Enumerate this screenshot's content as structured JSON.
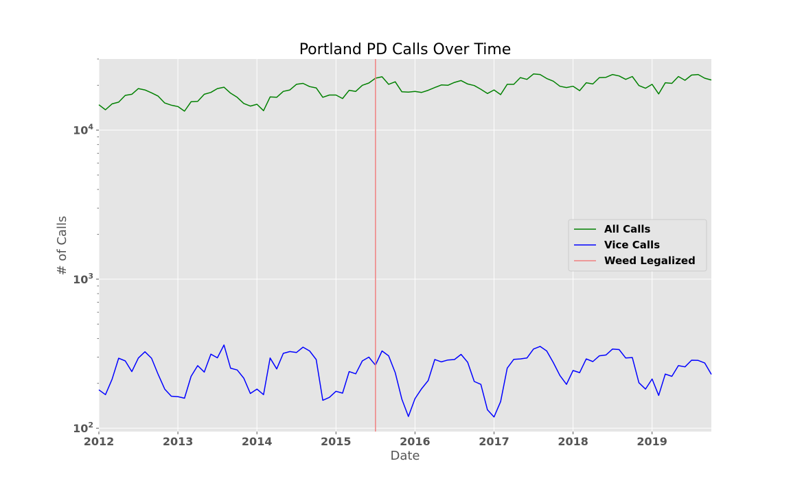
{
  "chart_data": {
    "type": "line",
    "title": "Portland PD Calls Over Time",
    "xlabel": "Date",
    "ylabel": "# of Calls",
    "yscale": "log",
    "ylim": [
      95,
      30000
    ],
    "xlim": [
      "2012-01",
      "2019-10"
    ],
    "grid": true,
    "background": "#e5e5e5",
    "legend": {
      "position": "center-right"
    },
    "x_ticks": [
      "2012",
      "2013",
      "2014",
      "2015",
      "2016",
      "2017",
      "2018",
      "2019"
    ],
    "y_ticks": [
      {
        "value": 100,
        "base": "10",
        "exp": "2"
      },
      {
        "value": 1000,
        "base": "10",
        "exp": "3"
      },
      {
        "value": 10000,
        "base": "10",
        "exp": "4"
      }
    ],
    "x": [
      "2012-01",
      "2012-02",
      "2012-03",
      "2012-04",
      "2012-05",
      "2012-06",
      "2012-07",
      "2012-08",
      "2012-09",
      "2012-10",
      "2012-11",
      "2012-12",
      "2013-01",
      "2013-02",
      "2013-03",
      "2013-04",
      "2013-05",
      "2013-06",
      "2013-07",
      "2013-08",
      "2013-09",
      "2013-10",
      "2013-11",
      "2013-12",
      "2014-01",
      "2014-02",
      "2014-03",
      "2014-04",
      "2014-05",
      "2014-06",
      "2014-07",
      "2014-08",
      "2014-09",
      "2014-10",
      "2014-11",
      "2014-12",
      "2015-01",
      "2015-02",
      "2015-03",
      "2015-04",
      "2015-05",
      "2015-06",
      "2015-07",
      "2015-08",
      "2015-09",
      "2015-10",
      "2015-11",
      "2015-12",
      "2016-01",
      "2016-02",
      "2016-03",
      "2016-04",
      "2016-05",
      "2016-06",
      "2016-07",
      "2016-08",
      "2016-09",
      "2016-10",
      "2016-11",
      "2016-12",
      "2017-01",
      "2017-02",
      "2017-03",
      "2017-04",
      "2017-05",
      "2017-06",
      "2017-07",
      "2017-08",
      "2017-09",
      "2017-10",
      "2017-11",
      "2017-12",
      "2018-01",
      "2018-02",
      "2018-03",
      "2018-04",
      "2018-05",
      "2018-06",
      "2018-07",
      "2018-08",
      "2018-09",
      "2018-10",
      "2018-11",
      "2018-12",
      "2019-01",
      "2019-02",
      "2019-03",
      "2019-04",
      "2019-05",
      "2019-06",
      "2019-07",
      "2019-08",
      "2019-09",
      "2019-10"
    ],
    "series": [
      {
        "name": "All Calls",
        "color": "#008000",
        "values": [
          14800,
          13700,
          15000,
          15400,
          17100,
          17400,
          19000,
          18600,
          17800,
          16900,
          15200,
          14700,
          14400,
          13400,
          15500,
          15600,
          17400,
          17900,
          19000,
          19400,
          17700,
          16600,
          15100,
          14500,
          14900,
          13500,
          16700,
          16600,
          18200,
          18600,
          20300,
          20600,
          19600,
          19200,
          16600,
          17200,
          17200,
          16300,
          18500,
          18200,
          20000,
          20700,
          22300,
          22800,
          20300,
          21100,
          18100,
          18000,
          18200,
          17900,
          18500,
          19300,
          20100,
          20000,
          20900,
          21500,
          20400,
          19900,
          18800,
          17600,
          18600,
          17300,
          20300,
          20300,
          22500,
          21900,
          23800,
          23600,
          22200,
          21300,
          19700,
          19300,
          19700,
          18400,
          20800,
          20400,
          22500,
          22600,
          23600,
          23100,
          21900,
          22900,
          19900,
          19100,
          20300,
          17500,
          20800,
          20600,
          22900,
          21600,
          23400,
          23600,
          22300,
          21700
        ]
      },
      {
        "name": "Vice Calls",
        "color": "#0000ff",
        "values": [
          181,
          168,
          213,
          295,
          283,
          240,
          296,
          326,
          295,
          230,
          183,
          164,
          163,
          159,
          223,
          263,
          238,
          314,
          297,
          362,
          253,
          246,
          217,
          171,
          183,
          168,
          296,
          250,
          318,
          327,
          322,
          350,
          330,
          289,
          154,
          161,
          177,
          172,
          240,
          232,
          283,
          300,
          265,
          330,
          306,
          236,
          157,
          120,
          158,
          184,
          209,
          289,
          279,
          287,
          289,
          313,
          277,
          206,
          197,
          133,
          119,
          151,
          253,
          290,
          292,
          296,
          340,
          354,
          330,
          276,
          226,
          197,
          244,
          236,
          292,
          280,
          306,
          310,
          340,
          337,
          296,
          298,
          202,
          183,
          214,
          166,
          231,
          223,
          263,
          258,
          286,
          285,
          274,
          230
        ]
      },
      {
        "name": "Weed Legalized",
        "color": "#f08080",
        "type": "vline",
        "x": "2015-07"
      }
    ]
  }
}
